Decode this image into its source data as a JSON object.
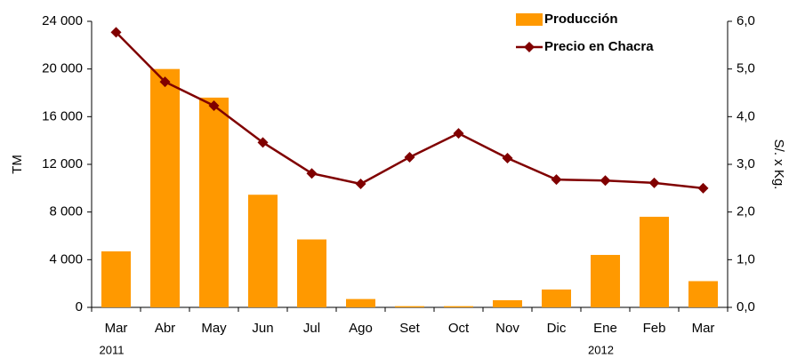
{
  "chart_data": {
    "type": "bar",
    "categories": [
      "Mar",
      "Abr",
      "May",
      "Jun",
      "Jul",
      "Ago",
      "Set",
      "Oct",
      "Nov",
      "Dic",
      "Ene",
      "Feb",
      "Mar"
    ],
    "years": [
      "2011",
      null,
      null,
      null,
      null,
      null,
      null,
      null,
      null,
      null,
      "2012",
      null,
      null
    ],
    "ylabel": "TM",
    "y2label": "S/. x Kg.",
    "ylim": [
      0,
      24000
    ],
    "yticks": [
      0,
      {
        "value": 4000,
        "label": "4 000"
      },
      {
        "value": 8000,
        "label": "8 000"
      },
      {
        "value": 12000,
        "label": "12 000"
      },
      {
        "value": 16000,
        "label": "16 000"
      },
      {
        "value": 20000,
        "label": "20 000"
      },
      {
        "value": 24000,
        "label": "24 000"
      }
    ],
    "y2lim": [
      0,
      6
    ],
    "y2ticks": [
      {
        "value": 0,
        "label": "0,0"
      },
      {
        "value": 1,
        "label": "1,0"
      },
      {
        "value": 2,
        "label": "2,0"
      },
      {
        "value": 3,
        "label": "3,0"
      },
      {
        "value": 4,
        "label": "4,0"
      },
      {
        "value": 5,
        "label": "5,0"
      },
      {
        "value": 6,
        "label": "6,0"
      }
    ],
    "grid": false,
    "legend": "top-right",
    "series": [
      {
        "name": "Producción",
        "type": "bar",
        "color": "#ff9900",
        "values": [
          4700,
          20000,
          17600,
          9450,
          5700,
          700,
          100,
          100,
          600,
          1500,
          4400,
          7600,
          2200
        ]
      },
      {
        "name": "Precio en Chacra",
        "type": "line",
        "axis": "y2",
        "color": "#800000",
        "values": [
          5.77,
          4.73,
          4.23,
          3.46,
          2.81,
          2.59,
          3.15,
          3.65,
          3.13,
          2.68,
          2.66,
          2.61,
          2.5
        ]
      }
    ]
  }
}
